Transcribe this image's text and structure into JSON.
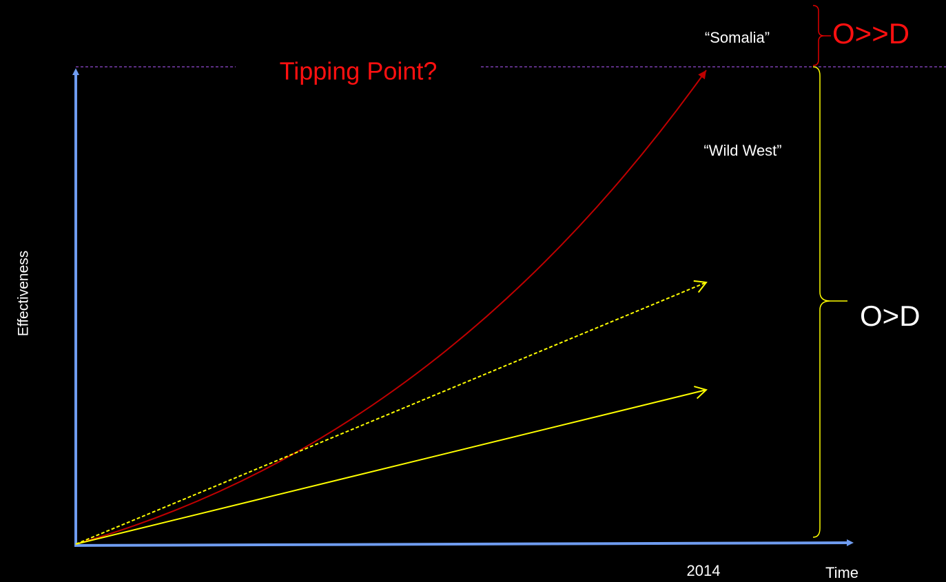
{
  "labels": {
    "somalia": "“Somalia”",
    "o_much_greater_d": "O>>D",
    "tipping_point": "Tipping Point?",
    "wild_west": "“Wild West”",
    "o_greater_d": "O>D",
    "y_axis": "Effectiveness",
    "year": "2014",
    "x_axis": "Time"
  }
}
